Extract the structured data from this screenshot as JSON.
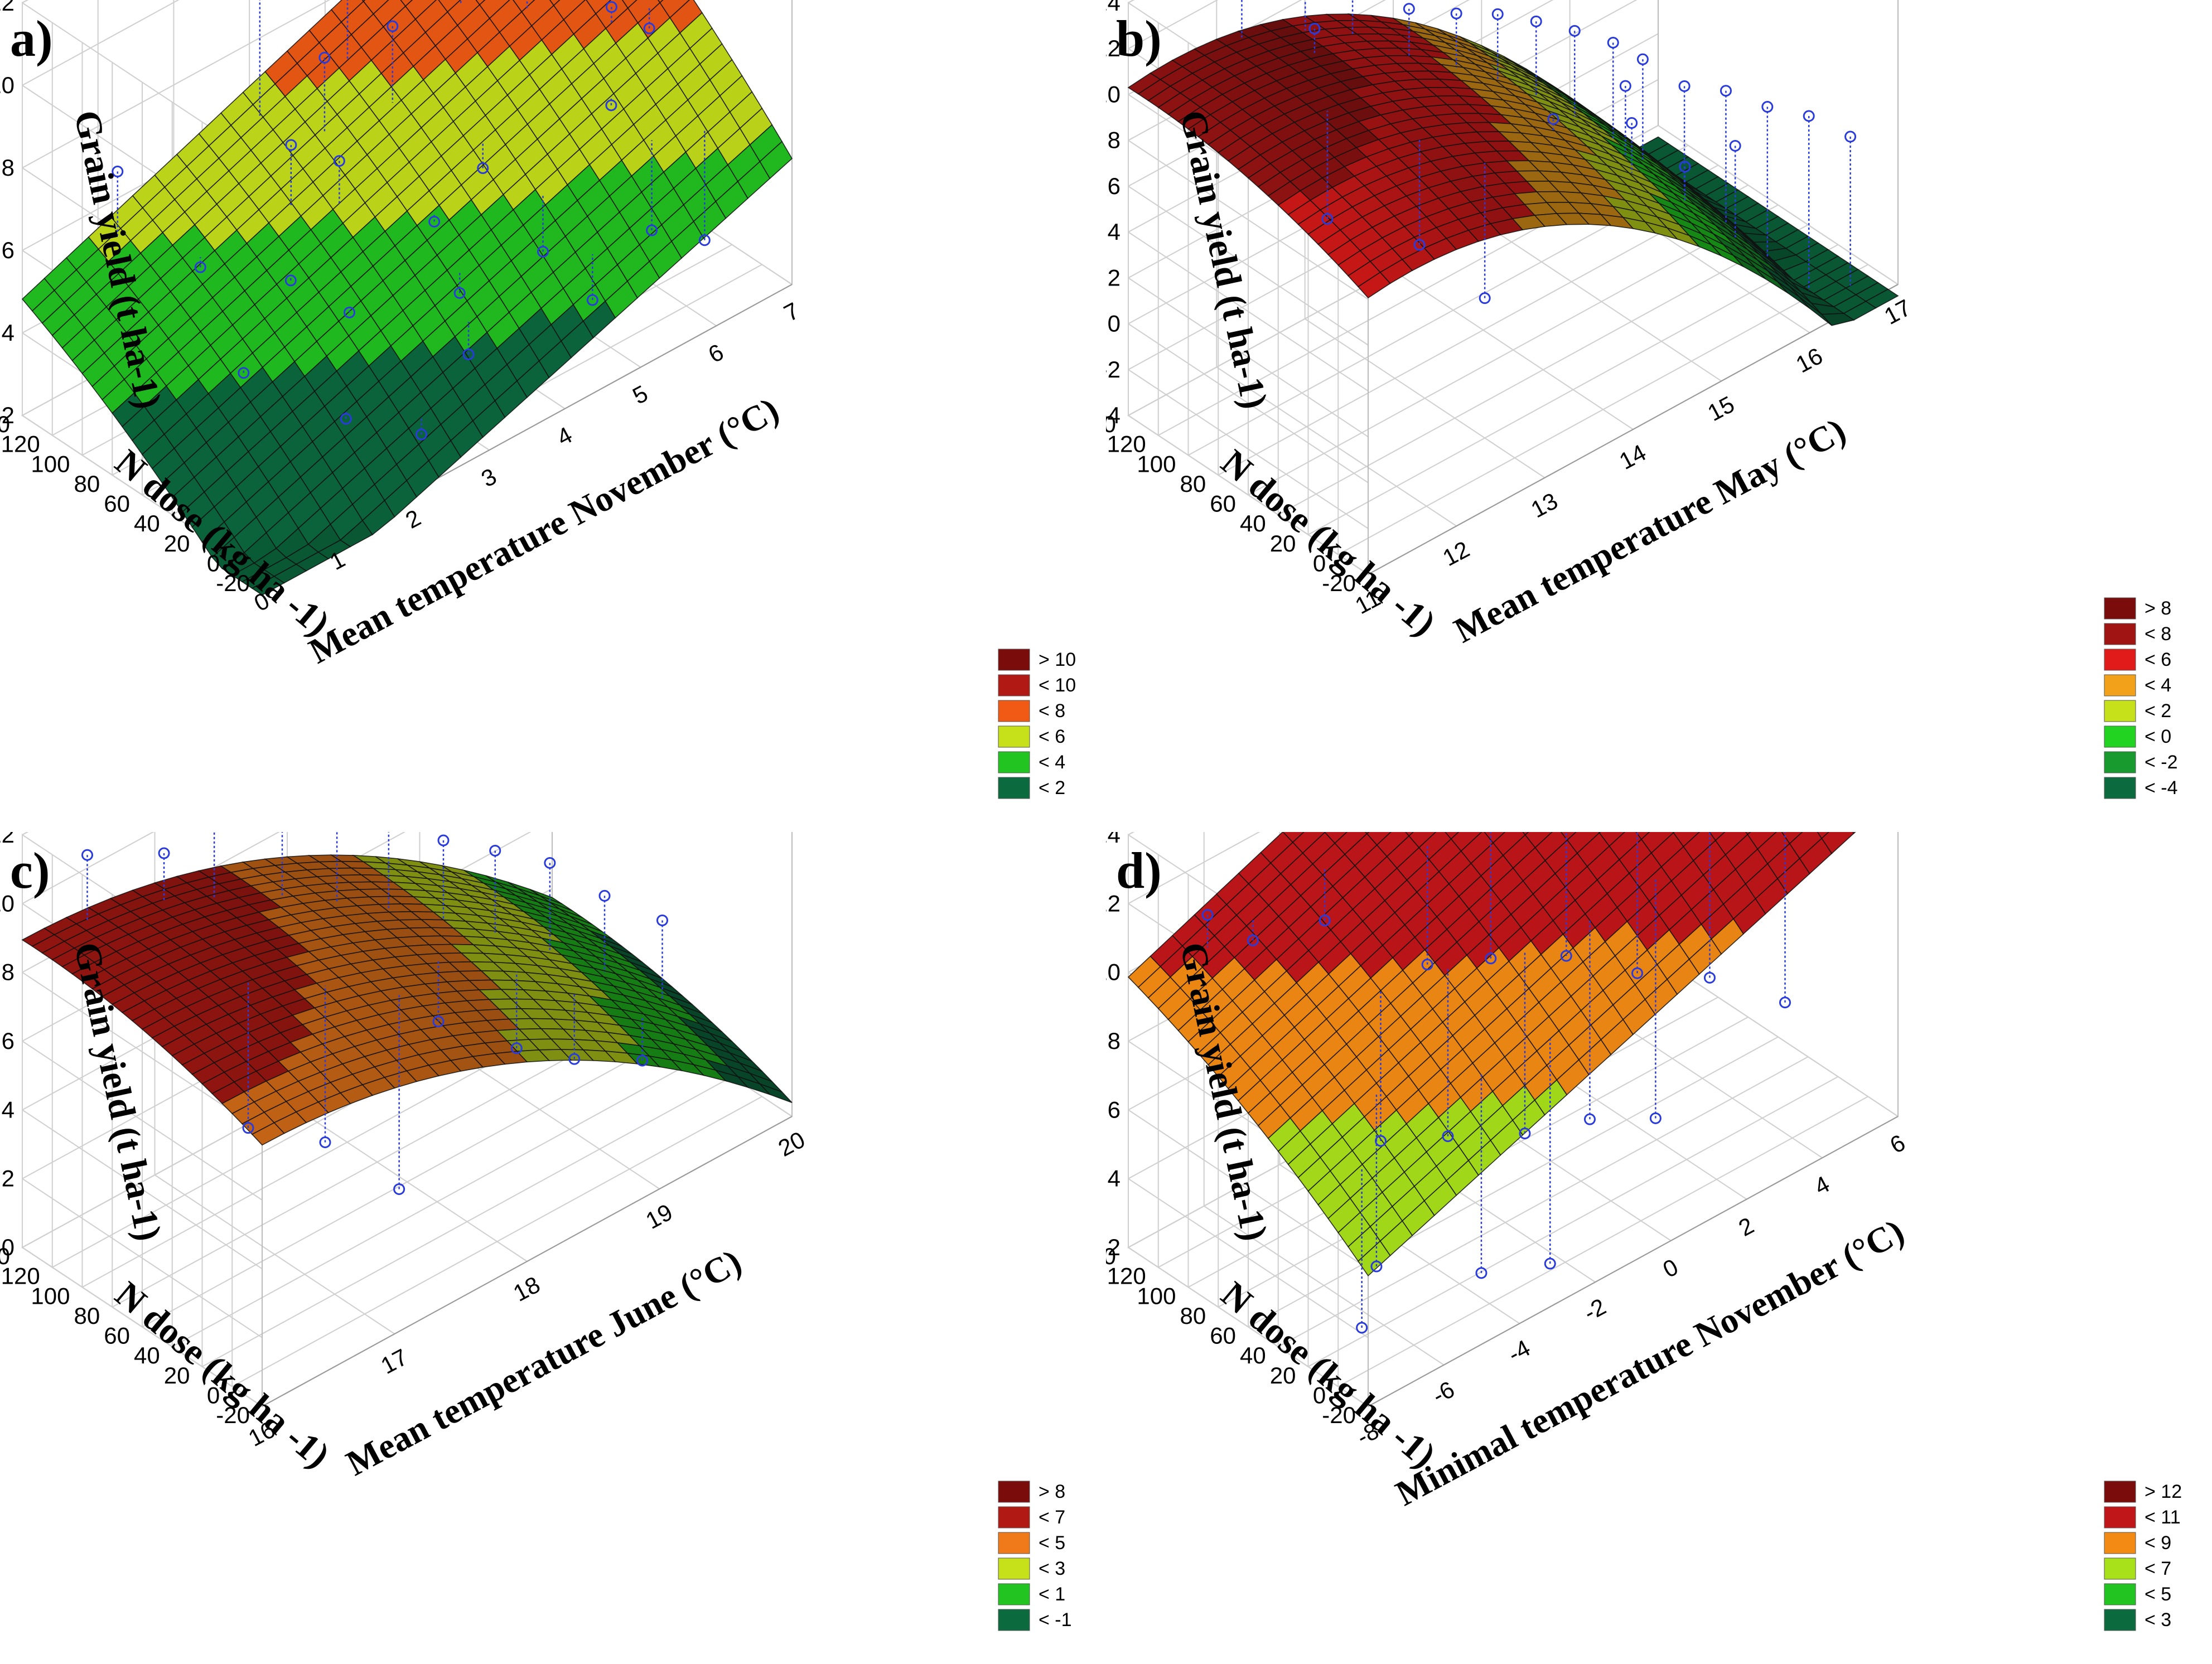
{
  "chart_data": [
    {
      "panel_label": "a)",
      "type": "surface3d",
      "title": "",
      "xlabel": "Mean temperature November (°C)",
      "ylabel": "N dose (kg ha -1)",
      "zlabel": "Grain yield (t ha-1)",
      "x_ticks": [
        "0",
        "1",
        "2",
        "3",
        "4",
        "5",
        "6",
        "7"
      ],
      "y_ticks": [
        "-20",
        "0",
        "20",
        "40",
        "60",
        "80",
        "100",
        "120",
        "140"
      ],
      "z_ticks": [
        "2",
        "4",
        "6",
        "8",
        "10",
        "12"
      ],
      "xlim": [
        0,
        7
      ],
      "ylim": [
        -20,
        140
      ],
      "zlim": [
        2,
        12
      ],
      "surface": {
        "a": 0.5,
        "bx": 0.65,
        "by": 0.035,
        "cx": 0.0,
        "cy": -5e-05,
        "cxy": 0.0004
      },
      "legend": [
        {
          "label": "> 10",
          "color": "#7a0c0c"
        },
        {
          "label": "< 10",
          "color": "#b11a14"
        },
        {
          "label": "< 8",
          "color": "#f05a14"
        },
        {
          "label": "< 6",
          "color": "#c6e01a"
        },
        {
          "label": "< 4",
          "color": "#22c421"
        },
        {
          "label": "< 2",
          "color": "#0b6a3e"
        }
      ],
      "points": [
        [
          6.2,
          135,
          12.1
        ],
        [
          5.8,
          128,
          11.7
        ],
        [
          4.6,
          132,
          11.2
        ],
        [
          3.9,
          120,
          10.4
        ],
        [
          6.4,
          100,
          10.6
        ],
        [
          5.1,
          105,
          9.5
        ],
        [
          2.9,
          128,
          9.6
        ],
        [
          4.0,
          95,
          8.5
        ],
        [
          5.6,
          86,
          8.9
        ],
        [
          3.3,
          105,
          8.2
        ],
        [
          1.1,
          132,
          7.0
        ],
        [
          2.6,
          92,
          7.1
        ],
        [
          3.0,
          80,
          6.6
        ],
        [
          6.2,
          60,
          7.6
        ],
        [
          5.8,
          40,
          6.1
        ],
        [
          6.6,
          55,
          6.8
        ],
        [
          4.5,
          60,
          5.4
        ],
        [
          3.7,
          52,
          5.1
        ],
        [
          1.6,
          102,
          4.9
        ],
        [
          2.2,
          72,
          4.7
        ],
        [
          2.5,
          48,
          4.2
        ],
        [
          4.7,
          30,
          3.9
        ],
        [
          3.6,
          30,
          4.0
        ],
        [
          5.9,
          18,
          3.5
        ],
        [
          3.4,
          14,
          3.1
        ],
        [
          1.9,
          20,
          2.9
        ],
        [
          2.5,
          0,
          2.4
        ],
        [
          6.4,
          8,
          3.0
        ],
        [
          4.8,
          2,
          3.3
        ],
        [
          1.3,
          58,
          3.7
        ]
      ]
    },
    {
      "panel_label": "b)",
      "type": "surface3d",
      "title": "",
      "xlabel": "Mean temperature May (°C)",
      "ylabel": "N dose (kg ha -1)",
      "zlabel": "Grain yield (t ha-1)",
      "x_ticks": [
        "11",
        "12",
        "13",
        "14",
        "15",
        "16",
        "17"
      ],
      "y_ticks": [
        "-20",
        "0",
        "20",
        "40",
        "60",
        "80",
        "100",
        "120",
        "140"
      ],
      "z_ticks": [
        "-4",
        "-2",
        "0",
        "2",
        "4",
        "6",
        "8",
        "10",
        "12",
        "14"
      ],
      "xlim": [
        11,
        17
      ],
      "ylim": [
        -20,
        140
      ],
      "zlim": [
        -4,
        14
      ],
      "surface": {
        "a": 8.2,
        "bx": 0.0,
        "by": 0.03,
        "cx": -0.55,
        "cy": -0.0001,
        "cxy": 0.0,
        "x0": 11.5
      },
      "legend": [
        {
          "label": "> 8",
          "color": "#7a0c0c"
        },
        {
          "label": "< 8",
          "color": "#a01414"
        },
        {
          "label": "< 6",
          "color": "#e11a1a"
        },
        {
          "label": "< 4",
          "color": "#f2a21a"
        },
        {
          "label": "< 2",
          "color": "#c6e01a"
        },
        {
          "label": "< 0",
          "color": "#22d421"
        },
        {
          "label": "< -2",
          "color": "#189a2e"
        },
        {
          "label": "< -4",
          "color": "#0b6a3e"
        }
      ],
      "points": [
        [
          12.2,
          135,
          12.4
        ],
        [
          12.8,
          128,
          12.9
        ],
        [
          13.2,
          120,
          11.5
        ],
        [
          12.6,
          110,
          10.8
        ],
        [
          13.5,
          100,
          10.2
        ],
        [
          13.9,
          92,
          9.5
        ],
        [
          14.3,
          88,
          8.8
        ],
        [
          14.6,
          80,
          8.2
        ],
        [
          14.9,
          72,
          7.5
        ],
        [
          15.2,
          64,
          6.7
        ],
        [
          15.4,
          56,
          5.9
        ],
        [
          15.0,
          44,
          6.1
        ],
        [
          15.6,
          40,
          5.0
        ],
        [
          15.9,
          30,
          4.6
        ],
        [
          16.2,
          20,
          3.7
        ],
        [
          15.3,
          22,
          2.9
        ],
        [
          16.5,
          10,
          3.1
        ],
        [
          16.8,
          0,
          2.0
        ],
        [
          12.1,
          72,
          5.2
        ],
        [
          12.6,
          40,
          4.4
        ],
        [
          13.0,
          20,
          2.1
        ],
        [
          14.2,
          45,
          6.3
        ],
        [
          14.8,
          28,
          5.6
        ],
        [
          15.7,
          12,
          3.4
        ]
      ]
    },
    {
      "panel_label": "c)",
      "type": "surface3d",
      "title": "",
      "xlabel": "Mean temperature June (°C)",
      "ylabel": "N dose (kg ha -1)",
      "zlabel": "Grain yield (t ha-1)",
      "x_ticks": [
        "16",
        "17",
        "18",
        "19",
        "20"
      ],
      "y_ticks": [
        "-20",
        "0",
        "20",
        "40",
        "60",
        "80",
        "100",
        "120",
        "140"
      ],
      "z_ticks": [
        "0",
        "2",
        "4",
        "6",
        "8",
        "10",
        "12"
      ],
      "xlim": [
        16,
        20
      ],
      "ylim": [
        -20,
        140
      ],
      "zlim": [
        0,
        12
      ],
      "surface": {
        "a": 7.6,
        "bx": 0.0,
        "by": 0.018,
        "cx": -0.45,
        "cy": -6e-05,
        "cxy": 0.0,
        "x0": 16.0
      },
      "legend": [
        {
          "label": "> 8",
          "color": "#7a0c0c"
        },
        {
          "label": "< 7",
          "color": "#b11a14"
        },
        {
          "label": "< 5",
          "color": "#f07a1a"
        },
        {
          "label": "< 3",
          "color": "#c6e01a"
        },
        {
          "label": "< 1",
          "color": "#22c421"
        },
        {
          "label": "< -1",
          "color": "#0b6a3e"
        }
      ],
      "points": [
        [
          16.4,
          132,
          10.8
        ],
        [
          16.9,
          125,
          10.0
        ],
        [
          17.2,
          118,
          11.6
        ],
        [
          17.6,
          108,
          12.4
        ],
        [
          17.9,
          98,
          11.1
        ],
        [
          18.2,
          90,
          9.2
        ],
        [
          18.5,
          80,
          8.3
        ],
        [
          18.8,
          72,
          7.6
        ],
        [
          19.1,
          62,
          6.9
        ],
        [
          19.4,
          52,
          5.6
        ],
        [
          19.7,
          40,
          4.6
        ],
        [
          18.6,
          40,
          3.2
        ],
        [
          18.9,
          28,
          2.6
        ],
        [
          19.3,
          18,
          2.0
        ],
        [
          16.8,
          60,
          4.1
        ],
        [
          17.2,
          44,
          3.3
        ],
        [
          17.6,
          30,
          1.5
        ],
        [
          18.1,
          48,
          4.8
        ]
      ]
    },
    {
      "panel_label": "d)",
      "type": "surface3d",
      "title": "",
      "xlabel": "Minimal temperature November (°C)",
      "ylabel": "N dose (kg ha -1)",
      "zlabel": "Grain yield (t ha-1)",
      "x_ticks": [
        "-8",
        "-6",
        "-4",
        "-2",
        "0",
        "2",
        "4",
        "6"
      ],
      "y_ticks": [
        "-20",
        "0",
        "20",
        "40",
        "60",
        "80",
        "100",
        "120",
        "140"
      ],
      "z_ticks": [
        "2",
        "4",
        "6",
        "8",
        "10",
        "12",
        "14"
      ],
      "xlim": [
        -8,
        6
      ],
      "ylim": [
        -20,
        140
      ],
      "zlim": [
        2,
        14
      ],
      "surface": {
        "a": 5.8,
        "bx": 0.4,
        "by": 0.035,
        "cx": 0.0,
        "cy": -6e-05,
        "cxy": 0.0002,
        "x0": -1.0
      },
      "legend": [
        {
          "label": "> 12",
          "color": "#7a0c0c"
        },
        {
          "label": "< 11",
          "color": "#c0161a"
        },
        {
          "label": "< 9",
          "color": "#f28a14"
        },
        {
          "label": "< 7",
          "color": "#a8e01a"
        },
        {
          "label": "< 5",
          "color": "#22c421"
        },
        {
          "label": "< 3",
          "color": "#0b6a3e"
        }
      ],
      "points": [
        [
          -6.5,
          125,
          11.2
        ],
        [
          -5.5,
          120,
          10.0
        ],
        [
          -3.8,
          115,
          9.7
        ],
        [
          0.6,
          132,
          14.0
        ],
        [
          2.1,
          122,
          12.1
        ],
        [
          3.8,
          110,
          11.6
        ],
        [
          4.9,
          90,
          9.3
        ],
        [
          -2.0,
          92,
          8.0
        ],
        [
          -0.8,
          80,
          7.8
        ],
        [
          0.8,
          70,
          7.2
        ],
        [
          2.2,
          58,
          6.2
        ],
        [
          3.6,
          45,
          5.6
        ],
        [
          -4.5,
          60,
          5.3
        ],
        [
          -3.2,
          48,
          5.0
        ],
        [
          -1.8,
          32,
          4.7
        ],
        [
          -0.4,
          24,
          4.5
        ],
        [
          1.1,
          18,
          3.8
        ],
        [
          -5.8,
          30,
          3.3
        ],
        [
          -6.9,
          12,
          2.7
        ],
        [
          -3.9,
          8,
          2.6
        ],
        [
          -2.4,
          0,
          2.2
        ],
        [
          4.6,
          20,
          5.0
        ]
      ]
    }
  ]
}
